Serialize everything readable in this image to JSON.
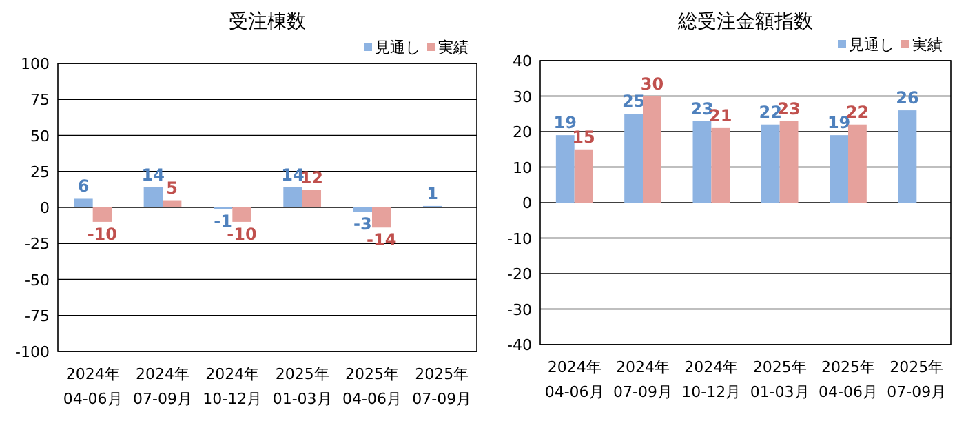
{
  "chart_data": [
    {
      "type": "bar",
      "title": "受注棟数",
      "categories": [
        "2024年\n04-06月",
        "2024年\n07-09月",
        "2024年\n10-12月",
        "2025年\n01-03月",
        "2025年\n04-06月",
        "2025年\n07-09月"
      ],
      "series": [
        {
          "name": "見通し",
          "color": "#8db3e2",
          "values": [
            6,
            14,
            -1,
            14,
            -3,
            1
          ]
        },
        {
          "name": "実績",
          "color": "#e6a19c",
          "values": [
            -10,
            5,
            -10,
            12,
            -14,
            null
          ]
        }
      ],
      "ylim": [
        -100,
        100
      ],
      "yticks": [
        -100,
        -75,
        -50,
        -25,
        0,
        25,
        50,
        75,
        100
      ],
      "grid": "y",
      "legend": "top right",
      "data_labels": true
    },
    {
      "type": "bar",
      "title": "総受注金額指数",
      "categories": [
        "2024年\n04-06月",
        "2024年\n07-09月",
        "2024年\n10-12月",
        "2025年\n01-03月",
        "2025年\n04-06月",
        "2025年\n07-09月"
      ],
      "series": [
        {
          "name": "見通し",
          "color": "#8db3e2",
          "values": [
            19,
            25,
            23,
            22,
            19,
            26
          ]
        },
        {
          "name": "実績",
          "color": "#e6a19c",
          "values": [
            15,
            30,
            21,
            23,
            22,
            null
          ]
        }
      ],
      "ylim": [
        -40,
        40
      ],
      "yticks": [
        -40,
        -30,
        -20,
        -10,
        0,
        10,
        20,
        30,
        40
      ],
      "grid": "y",
      "legend": "top right",
      "data_labels": true
    }
  ]
}
